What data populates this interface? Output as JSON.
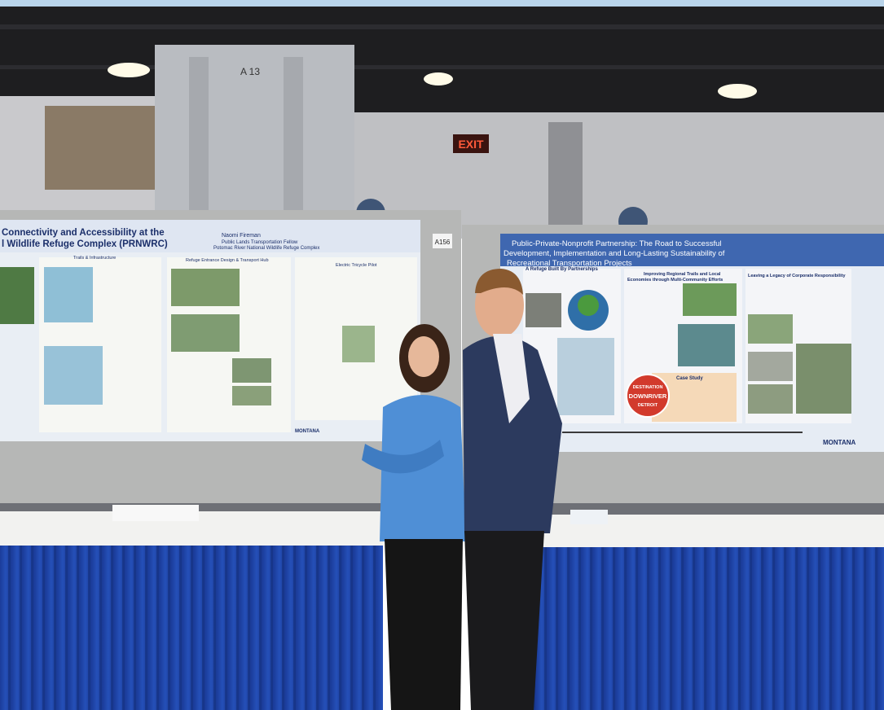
{
  "scene": {
    "signs": {
      "pillar": "A 13",
      "exit": "EXIT",
      "booth": "A156"
    },
    "poster_left": {
      "title_lines": [
        "Connectivity and Accessibility at the",
        "l Wildlife Refuge Complex (PRNWRC)"
      ],
      "author": "Naomi Fireman",
      "role": "Public Lands Transportation Fellow",
      "affiliation": "Potomac River National Wildlife Refuge Complex",
      "sections": [
        "Trails & Infrastructure",
        "Refuge Entrance Design & Transport Hub",
        "Electric Tricycle Pilot"
      ],
      "logo": "MONTANA"
    },
    "poster_right": {
      "title_lines": [
        "Public-Private-Nonprofit Partnership: The Road to Successful",
        "Development, Implementation and Long-Lasting Sustainability of",
        "Recreational Transportation Projects"
      ],
      "sections": [
        "A Refuge Built By Partnerships",
        "Improving Regional Trails and Local",
        "Economies through Multi-Community Efforts",
        "Leaving a Legacy of Corporate Responsibility",
        "Case Study"
      ],
      "badge_lines": [
        "DESTINATION",
        "DOWNRIVER",
        "DETROIT"
      ],
      "logo": "MONTANA"
    }
  }
}
